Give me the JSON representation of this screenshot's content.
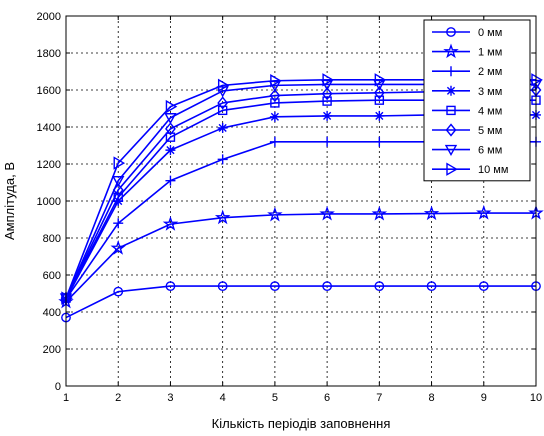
{
  "chart_data": {
    "type": "line",
    "title": "",
    "xlabel": "Кількість періодів заповнення",
    "ylabel": "Амплітуда, В",
    "xlim": [
      1,
      10
    ],
    "ylim": [
      0,
      2000
    ],
    "xticks": [
      1,
      2,
      3,
      4,
      5,
      6,
      7,
      8,
      9,
      10
    ],
    "yticks": [
      0,
      200,
      400,
      600,
      800,
      1000,
      1200,
      1400,
      1600,
      1800,
      2000
    ],
    "grid": true,
    "grid_style": "dotted",
    "legend_position": "top-right",
    "line_color": "#0000ff",
    "x": [
      1,
      2,
      3,
      4,
      5,
      6,
      7,
      8,
      9,
      10
    ],
    "series": [
      {
        "name": "0 мм",
        "marker": "circle",
        "values": [
          370,
          510,
          540,
          540,
          540,
          540,
          540,
          540,
          540,
          540
        ]
      },
      {
        "name": "1 мм",
        "marker": "star",
        "values": [
          455,
          745,
          875,
          910,
          925,
          930,
          930,
          932,
          935,
          935
        ]
      },
      {
        "name": "2 мм",
        "marker": "plus",
        "values": [
          470,
          880,
          1110,
          1225,
          1320,
          1320,
          1320,
          1320,
          1320,
          1320
        ]
      },
      {
        "name": "3 мм",
        "marker": "asterisk",
        "values": [
          470,
          1000,
          1275,
          1395,
          1455,
          1460,
          1460,
          1465,
          1465,
          1465
        ]
      },
      {
        "name": "4 мм",
        "marker": "square",
        "values": [
          475,
          1020,
          1345,
          1490,
          1530,
          1540,
          1545,
          1545,
          1545,
          1545
        ]
      },
      {
        "name": "5 мм",
        "marker": "diamond",
        "values": [
          475,
          1060,
          1390,
          1530,
          1570,
          1580,
          1585,
          1590,
          1595,
          1600
        ]
      },
      {
        "name": "6 мм",
        "marker": "triangle-down",
        "values": [
          475,
          1110,
          1450,
          1595,
          1625,
          1630,
          1630,
          1630,
          1630,
          1630
        ]
      },
      {
        "name": "10 мм",
        "marker": "triangle-right",
        "values": [
          475,
          1205,
          1510,
          1625,
          1650,
          1655,
          1655,
          1655,
          1655,
          1655
        ]
      }
    ]
  }
}
